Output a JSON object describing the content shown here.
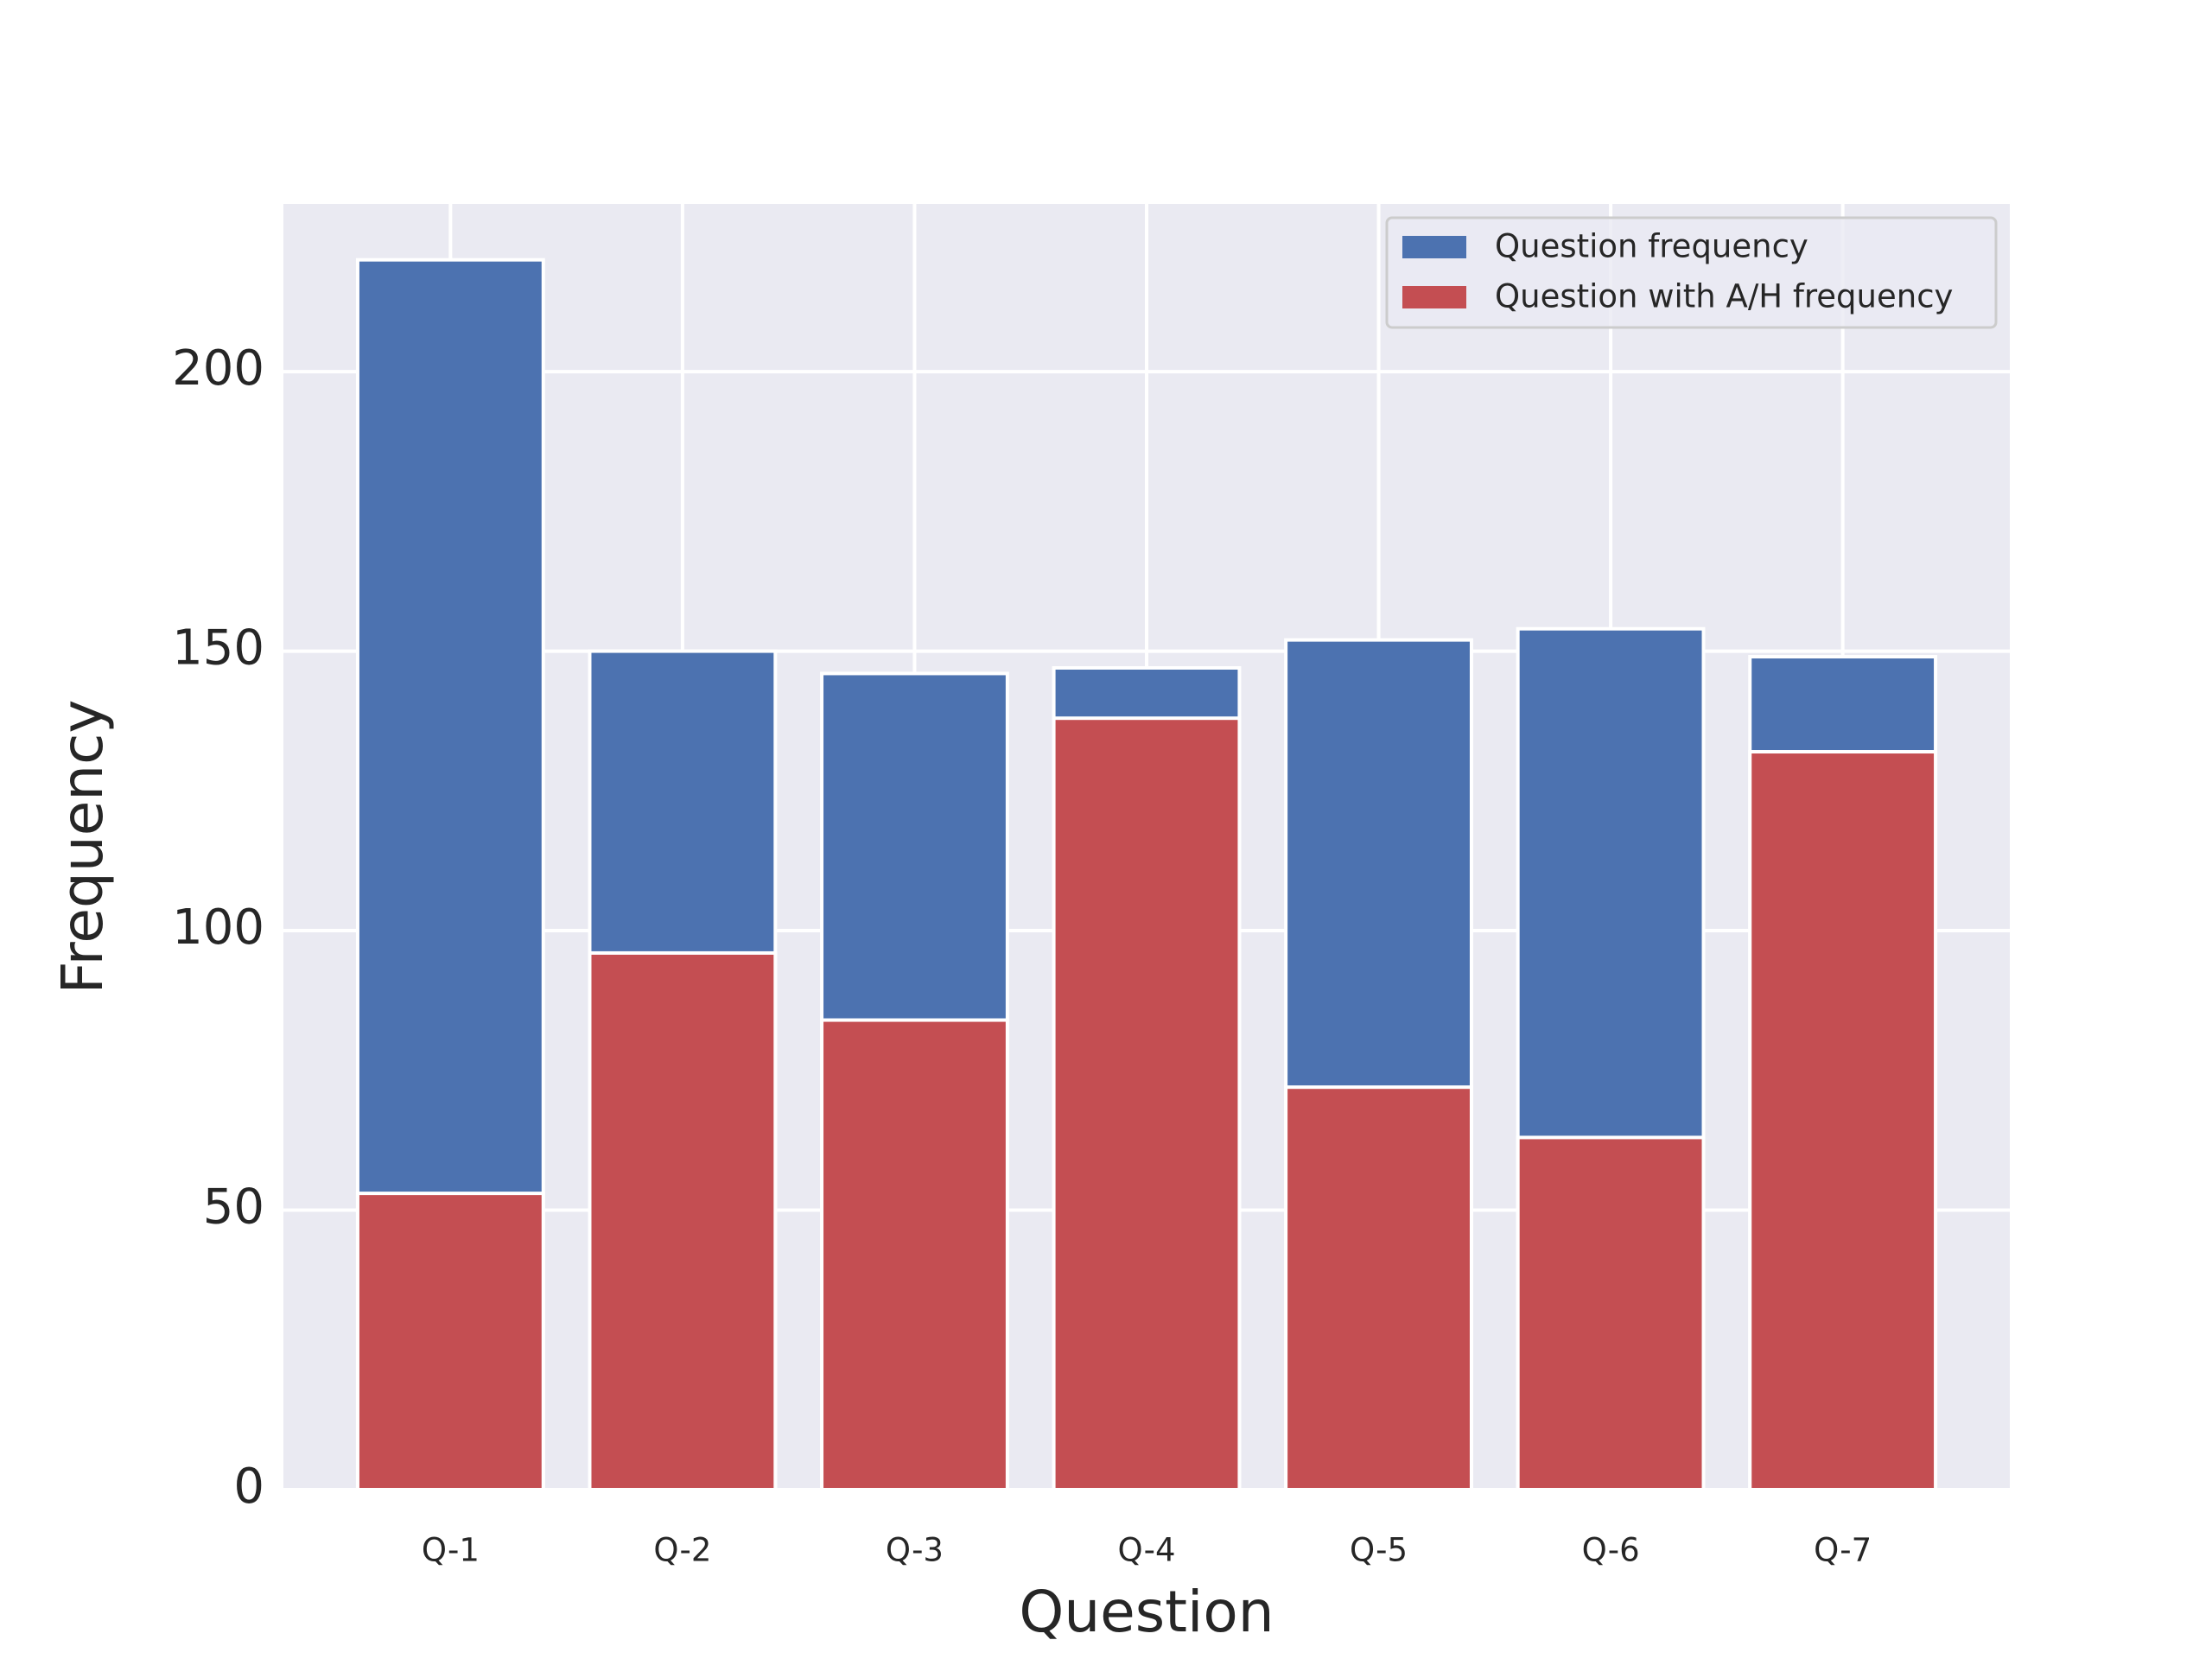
{
  "chart_data": {
    "type": "bar",
    "x_label": "Question",
    "y_label": "Frequency",
    "categories": [
      "Q-1",
      "Q-2",
      "Q-3",
      "Q-4",
      "Q-5",
      "Q-6",
      "Q-7"
    ],
    "series": [
      {
        "name": "Question frequency",
        "color": "#4c72b0",
        "values": [
          220,
          150,
          146,
          147,
          152,
          154,
          149
        ]
      },
      {
        "name": "Question with A/H frequency",
        "color": "#c44e52",
        "values": [
          53,
          96,
          84,
          138,
          72,
          63,
          132
        ]
      }
    ],
    "ylim": [
      0,
      230
    ],
    "yticks": [
      0,
      50,
      100,
      150,
      200
    ],
    "grid": true,
    "legend": "upper right"
  }
}
